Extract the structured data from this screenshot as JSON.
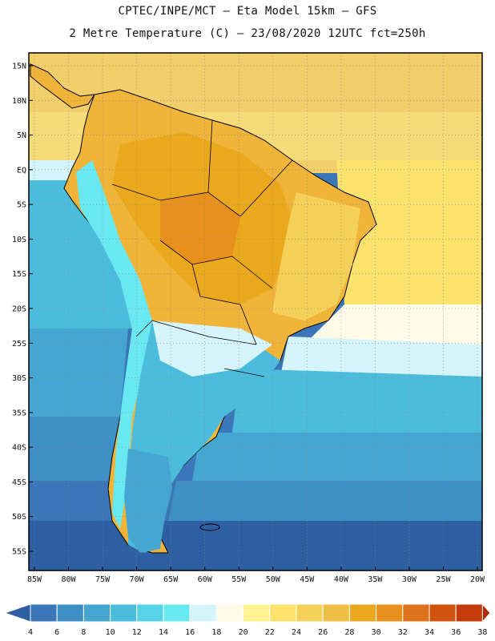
{
  "header": {
    "title_line1": "CPTEC/INPE/MCT –  Eta Model 15km – GFS",
    "title_line2": "2 Metre Temperature (C) – 23/08/2020 12UTC fct=250h"
  },
  "map": {
    "lat_labels": [
      "15N",
      "10N",
      "5N",
      "EQ",
      "5S",
      "10S",
      "15S",
      "20S",
      "25S",
      "30S",
      "35S",
      "40S",
      "45S",
      "50S",
      "55S"
    ],
    "lon_labels": [
      "85W",
      "80W",
      "75W",
      "70W",
      "65W",
      "60W",
      "55W",
      "50W",
      "45W",
      "40W",
      "35W",
      "30W",
      "25W",
      "20W"
    ],
    "lat_values": [
      15,
      10,
      5,
      0,
      -5,
      -10,
      -15,
      -20,
      -25,
      -30,
      -35,
      -40,
      -45,
      -50,
      -55
    ],
    "lon_values": [
      -85,
      -80,
      -75,
      -70,
      -65,
      -60,
      -55,
      -50,
      -45,
      -40,
      -35,
      -30,
      -25,
      -20
    ]
  },
  "legend": {
    "values": [
      "4",
      "6",
      "8",
      "10",
      "12",
      "14",
      "16",
      "18",
      "20",
      "22",
      "24",
      "26",
      "28",
      "30",
      "32",
      "34",
      "36",
      "38"
    ],
    "colors": [
      "#2e5fa3",
      "#3a76b8",
      "#3e8fc6",
      "#45a6d2",
      "#4cbcdc",
      "#58d2e6",
      "#6ae8f2",
      "#d6f4fb",
      "#fffbe6",
      "#fff494",
      "#fbe36d",
      "#f6d15a",
      "#efbe45",
      "#eaa81c",
      "#e7901e",
      "#e0711c",
      "#d1520f",
      "#c23c0c",
      "#b32a06"
    ]
  }
}
